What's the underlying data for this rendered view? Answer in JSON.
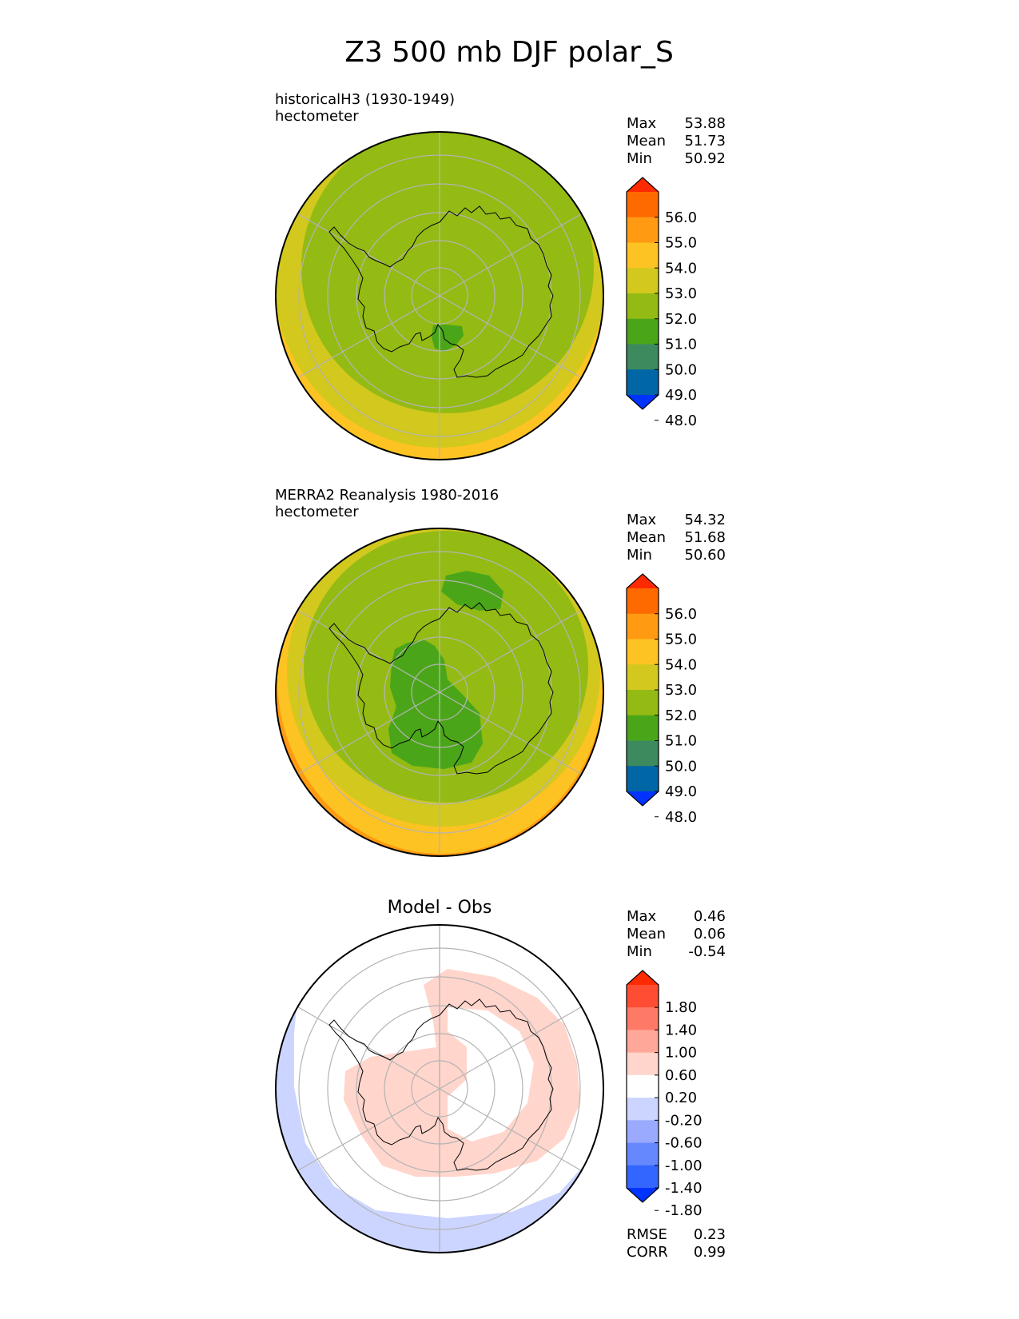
{
  "title": "Z3 500 mb DJF polar_S",
  "colors": {
    "grid": "#b4b4b4",
    "coast": "#000000",
    "abs_levels": [
      "#0033ff",
      "#0066a6",
      "#3c8a5e",
      "#4aa618",
      "#94ba14",
      "#d2c81e",
      "#fdc322",
      "#ff9a12",
      "#ff6a00",
      "#ff2a00"
    ],
    "diff_levels": [
      "#0033ff",
      "#3366ff",
      "#6688ff",
      "#99aaff",
      "#ccd5ff",
      "#ffffff",
      "#ffd5cc",
      "#ffa899",
      "#ff7a66",
      "#ff4d33",
      "#ff2a00"
    ]
  },
  "chart_data": [
    {
      "type": "heatmap",
      "name": "test",
      "projection": "polar stereographic (south)",
      "subtitle_line1": "historicalH3 (1930-1949)",
      "subtitle_line2": "hectometer",
      "stats": [
        {
          "label": "Max",
          "value": "53.88"
        },
        {
          "label": "Mean",
          "value": "51.73"
        },
        {
          "label": "Min",
          "value": "50.92"
        }
      ],
      "colorbar_ticks": [
        "56.0",
        "55.0",
        "54.0",
        "53.0",
        "52.0",
        "51.0",
        "50.0",
        "49.0",
        "48.0"
      ],
      "colorbar_extend": "both"
    },
    {
      "type": "heatmap",
      "name": "reference",
      "projection": "polar stereographic (south)",
      "subtitle_line1": "MERRA2 Reanalysis 1980-2016",
      "subtitle_line2": "hectometer",
      "stats": [
        {
          "label": "Max",
          "value": "54.32"
        },
        {
          "label": "Mean",
          "value": "51.68"
        },
        {
          "label": "Min",
          "value": "50.60"
        }
      ],
      "colorbar_ticks": [
        "56.0",
        "55.0",
        "54.0",
        "53.0",
        "52.0",
        "51.0",
        "50.0",
        "49.0",
        "48.0"
      ],
      "colorbar_extend": "both"
    },
    {
      "type": "heatmap",
      "name": "difference",
      "projection": "polar stereographic (south)",
      "title": "Model - Obs",
      "stats": [
        {
          "label": "Max",
          "value": "0.46"
        },
        {
          "label": "Mean",
          "value": "0.06"
        },
        {
          "label": "Min",
          "value": "-0.54"
        }
      ],
      "colorbar_ticks": [
        "1.80",
        "1.40",
        "1.00",
        "0.60",
        "0.20",
        "-0.20",
        "-0.60",
        "-1.00",
        "-1.40",
        "-1.80"
      ],
      "colorbar_extend": "both",
      "metrics": [
        {
          "label": "RMSE",
          "value": "0.23"
        },
        {
          "label": "CORR",
          "value": "0.99"
        }
      ]
    }
  ]
}
